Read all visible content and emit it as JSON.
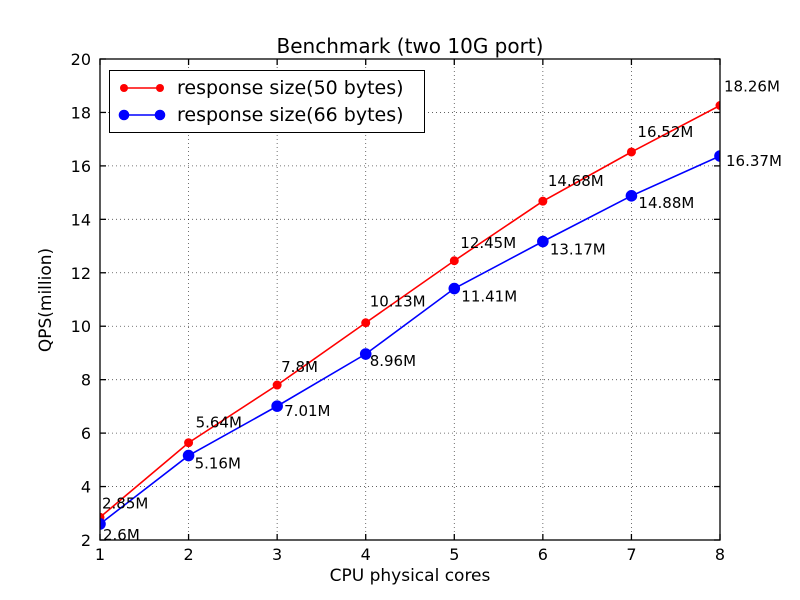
{
  "chart_data": {
    "type": "line",
    "title": "Benchmark (two 10G port)",
    "xlabel": "CPU physical cores",
    "ylabel": "QPS(million)",
    "x": [
      1,
      2,
      3,
      4,
      5,
      6,
      7,
      8
    ],
    "xlim": [
      1,
      8
    ],
    "ylim": [
      2,
      20
    ],
    "xticks": [
      1,
      2,
      3,
      4,
      5,
      6,
      7,
      8
    ],
    "yticks": [
      2,
      4,
      6,
      8,
      10,
      12,
      14,
      16,
      18,
      20
    ],
    "grid": "dotted",
    "legend_position": "upper left",
    "series": [
      {
        "name": "response size(50 bytes)",
        "color": "#ff0000",
        "marker": "circle",
        "marker_radius": 4,
        "values": [
          2.85,
          5.64,
          7.8,
          10.13,
          12.45,
          14.68,
          16.52,
          18.26
        ],
        "labels": [
          "2.85M",
          "5.64M",
          "7.8M",
          "10.13M",
          "12.45M",
          "14.68M",
          "16.52M",
          "18.26M"
        ]
      },
      {
        "name": "response size(66 bytes)",
        "color": "#0000ff",
        "marker": "circle",
        "marker_radius": 5.3,
        "values": [
          2.6,
          5.16,
          7.01,
          8.96,
          11.41,
          13.17,
          14.88,
          16.37
        ],
        "labels": [
          "2.6M",
          "5.16M",
          "7.01M",
          "8.96M",
          "11.41M",
          "13.17M",
          "14.88M",
          "16.37M"
        ]
      }
    ]
  }
}
